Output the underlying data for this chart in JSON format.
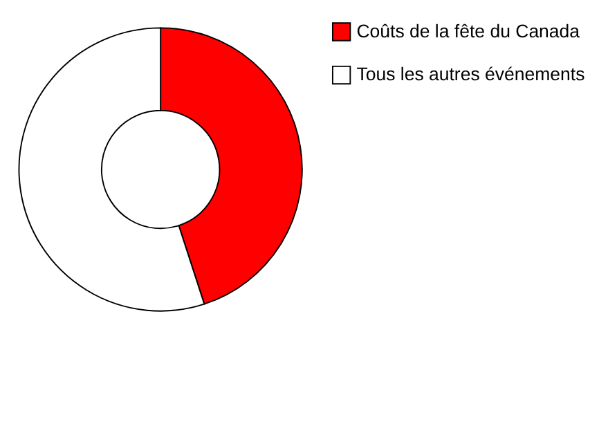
{
  "chart_data": {
    "type": "donut",
    "categories": [
      "Coûts de la fête du Canada",
      "Tous les autres événements"
    ],
    "values": [
      45,
      55
    ],
    "colors": [
      "#ff0000",
      "#ffffff"
    ],
    "legend": "right"
  }
}
